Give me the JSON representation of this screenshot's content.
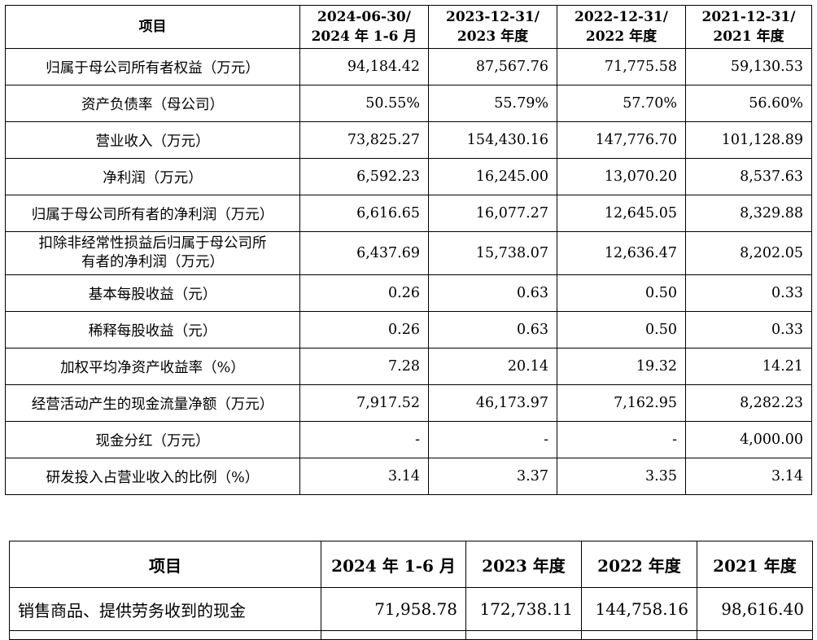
{
  "table1": {
    "headers": [
      "项目",
      [
        "2024-06-30/",
        "2024 年 1-6 月"
      ],
      [
        "2023-12-31/",
        "2023 年度"
      ],
      [
        "2022-12-31/",
        "2022 年度"
      ],
      [
        "2021-12-31/",
        "2021 年度"
      ]
    ],
    "rows": [
      {
        "item": "归属于母公司所有者权益（万元）",
        "values": [
          "94,184.42",
          "87,567.76",
          "71,775.58",
          "59,130.53"
        ]
      },
      {
        "item": "资产负债率（母公司）",
        "values": [
          "50.55%",
          "55.79%",
          "57.70%",
          "56.60%"
        ]
      },
      {
        "item": "营业收入（万元）",
        "values": [
          "73,825.27",
          "154,430.16",
          "147,776.70",
          "101,128.89"
        ]
      },
      {
        "item": "净利润（万元）",
        "values": [
          "6,592.23",
          "16,245.00",
          "13,070.20",
          "8,537.63"
        ]
      },
      {
        "item": "归属于母公司所有者的净利润（万元）",
        "values": [
          "6,616.65",
          "16,077.27",
          "12,645.05",
          "8,329.88"
        ]
      },
      {
        "item": [
          "扣除非经常性损益后归属于母公司所",
          "有者的净利润（万元）"
        ],
        "values": [
          "6,437.69",
          "15,738.07",
          "12,636.47",
          "8,202.05"
        ]
      },
      {
        "item": "基本每股收益（元）",
        "values": [
          "0.26",
          "0.63",
          "0.50",
          "0.33"
        ]
      },
      {
        "item": "稀释每股收益（元）",
        "values": [
          "0.26",
          "0.63",
          "0.50",
          "0.33"
        ]
      },
      {
        "item": "加权平均净资产收益率（%）",
        "values": [
          "7.28",
          "20.14",
          "19.32",
          "14.21"
        ]
      },
      {
        "item": "经营活动产生的现金流量净额（万元）",
        "values": [
          "7,917.52",
          "46,173.97",
          "7,162.95",
          "8,282.23"
        ]
      },
      {
        "item": "现金分红（万元）",
        "values": [
          "-",
          "-",
          "-",
          "4,000.00"
        ]
      },
      {
        "item": "研发投入占营业收入的比例（%）",
        "values": [
          "3.14",
          "3.37",
          "3.35",
          "3.14"
        ]
      }
    ]
  },
  "table2": {
    "headers": [
      "项目",
      "2024 年 1-6 月",
      "2023 年度",
      "2022 年度",
      "2021 年度"
    ],
    "rows": [
      {
        "item": "销售商品、提供劳务收到的现金",
        "values": [
          "71,958.78",
          "172,738.11",
          "144,758.16",
          "98,616.40"
        ]
      }
    ]
  }
}
